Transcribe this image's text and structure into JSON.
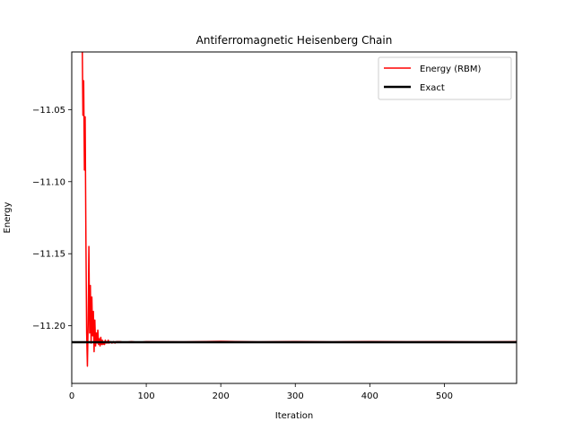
{
  "chart_data": {
    "type": "line",
    "title": "Antiferromagnetic Heisenberg Chain",
    "xlabel": "Iteration",
    "ylabel": "Energy",
    "xlim": [
      0,
      597
    ],
    "ylim": [
      -11.24,
      -11.01
    ],
    "x_ticks": [
      0,
      100,
      200,
      300,
      400,
      500
    ],
    "x_tick_labels": [
      "0",
      "100",
      "200",
      "300",
      "400",
      "500"
    ],
    "y_ticks": [
      -11.05,
      -11.1,
      -11.15,
      -11.2
    ],
    "y_tick_labels": [
      "−11.05",
      "−11.10",
      "−11.15",
      "−11.20"
    ],
    "grid": false,
    "legend_position": "top-right",
    "series": [
      {
        "name": "Energy (RBM)",
        "color": "#ff0000",
        "x": [
          14,
          15,
          16,
          17,
          18,
          19,
          20,
          21,
          22,
          23,
          24,
          25,
          26,
          27,
          28,
          29,
          30,
          31,
          32,
          33,
          34,
          35,
          36,
          37,
          38,
          39,
          40,
          41,
          42,
          43,
          44,
          45,
          46,
          47,
          48,
          49,
          50,
          52,
          54,
          56,
          58,
          60,
          65,
          70,
          80,
          90,
          100,
          150,
          200,
          250,
          300,
          350,
          400,
          450,
          500,
          550,
          597
        ],
        "y": [
          -11.0,
          -11.054,
          -11.03,
          -11.092,
          -11.055,
          -11.14,
          -11.205,
          -11.228,
          -11.198,
          -11.145,
          -11.205,
          -11.172,
          -11.212,
          -11.18,
          -11.207,
          -11.19,
          -11.218,
          -11.196,
          -11.214,
          -11.205,
          -11.212,
          -11.203,
          -11.213,
          -11.209,
          -11.214,
          -11.208,
          -11.213,
          -11.21,
          -11.213,
          -11.211,
          -11.213,
          -11.21,
          -11.212,
          -11.211,
          -11.212,
          -11.21,
          -11.212,
          -11.211,
          -11.212,
          -11.211,
          -11.212,
          -11.211,
          -11.211,
          -11.2115,
          -11.211,
          -11.2115,
          -11.211,
          -11.2112,
          -11.2108,
          -11.2112,
          -11.2109,
          -11.2112,
          -11.2109,
          -11.2111,
          -11.211,
          -11.2112,
          -11.211
        ]
      },
      {
        "name": "Exact",
        "color": "#000000",
        "x": [
          0,
          597
        ],
        "y": [
          -11.2114,
          -11.2114
        ]
      }
    ]
  }
}
